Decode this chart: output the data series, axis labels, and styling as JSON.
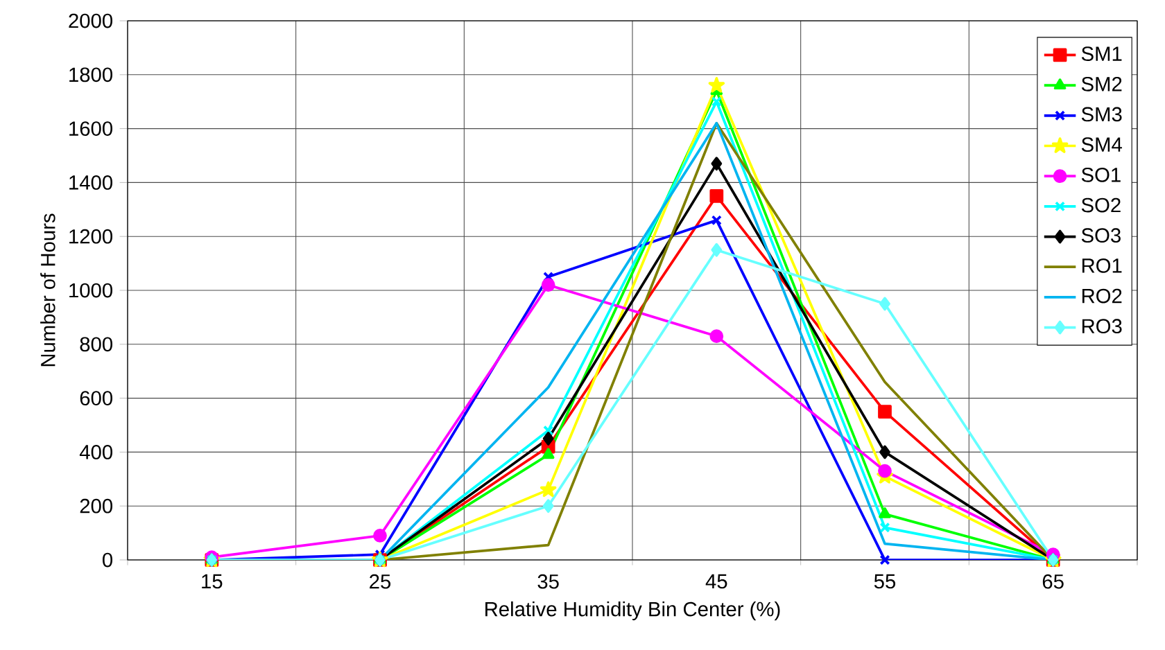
{
  "chart_data": {
    "type": "line",
    "xlabel": "Relative Humidity Bin Center (%)",
    "ylabel": "Number of Hours",
    "categories": [
      "15",
      "25",
      "35",
      "45",
      "55",
      "65"
    ],
    "ylim": [
      0,
      2000
    ],
    "yticks": [
      0,
      200,
      400,
      600,
      800,
      1000,
      1200,
      1400,
      1600,
      1800,
      2000
    ],
    "grid": true,
    "legend": "top right",
    "series": [
      {
        "name": "SM1",
        "color": "#ff0000",
        "marker": "square",
        "values": [
          0,
          0,
          420,
          1350,
          550,
          0
        ]
      },
      {
        "name": "SM2",
        "color": "#00ff00",
        "marker": "triangle",
        "values": [
          0,
          0,
          390,
          1740,
          170,
          0
        ]
      },
      {
        "name": "SM3",
        "color": "#0000ff",
        "marker": "cross",
        "values": [
          0,
          20,
          1050,
          1260,
          0,
          0
        ]
      },
      {
        "name": "SM4",
        "color": "#ffff00",
        "marker": "star",
        "values": [
          0,
          0,
          260,
          1760,
          310,
          0
        ]
      },
      {
        "name": "SO1",
        "color": "#ff00ff",
        "marker": "circle",
        "values": [
          10,
          90,
          1020,
          830,
          330,
          20
        ]
      },
      {
        "name": "SO2",
        "color": "#00ffff",
        "marker": "cross",
        "values": [
          0,
          0,
          480,
          1700,
          120,
          0
        ]
      },
      {
        "name": "SO3",
        "color": "#000000",
        "marker": "diamond",
        "values": [
          0,
          0,
          450,
          1470,
          400,
          0
        ]
      },
      {
        "name": "RO1",
        "color": "#808000",
        "marker": "none",
        "values": [
          0,
          0,
          55,
          1620,
          660,
          0
        ]
      },
      {
        "name": "RO2",
        "color": "#00b4f0",
        "marker": "none",
        "values": [
          0,
          0,
          640,
          1620,
          60,
          0
        ]
      },
      {
        "name": "RO3",
        "color": "#66ffff",
        "marker": "diamond",
        "values": [
          0,
          0,
          200,
          1150,
          950,
          0
        ]
      }
    ]
  }
}
